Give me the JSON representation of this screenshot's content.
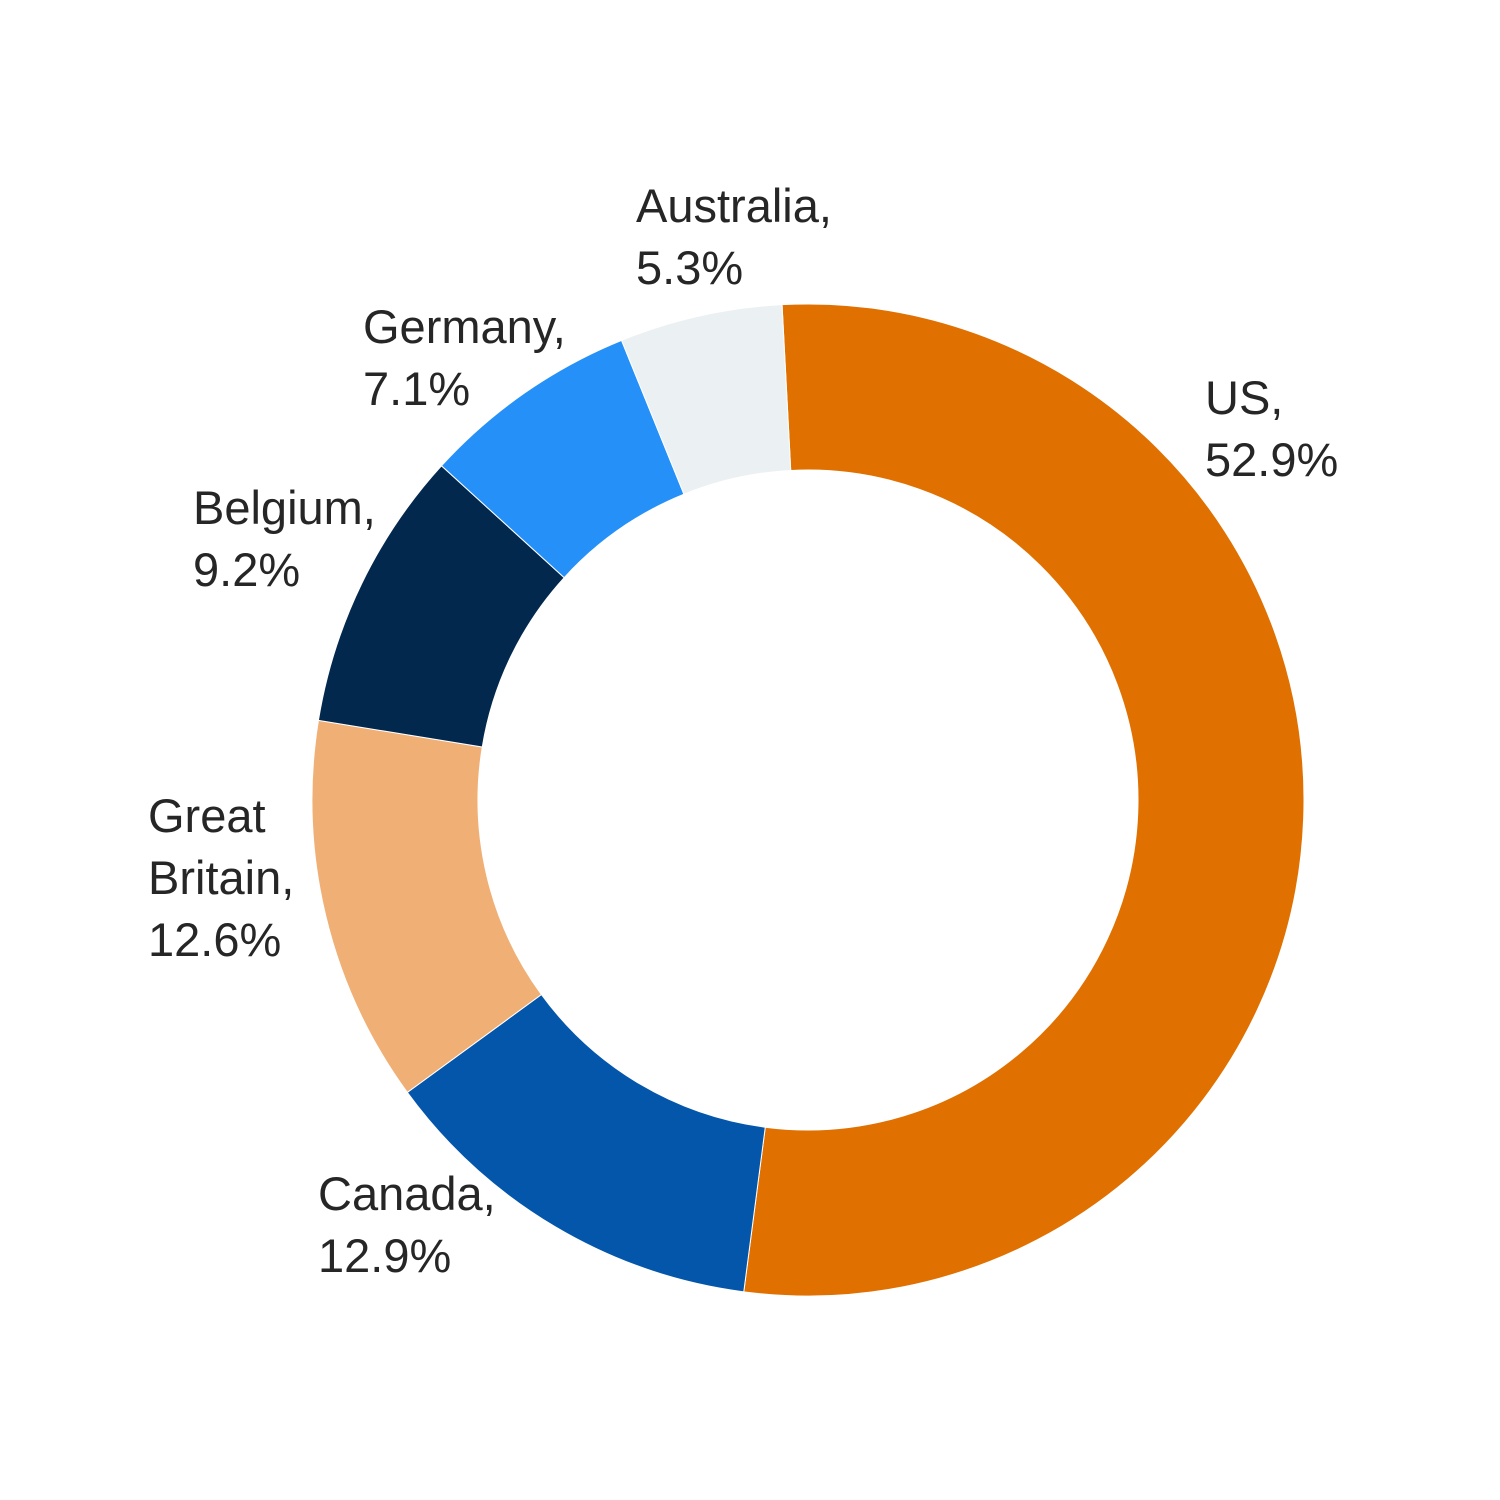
{
  "chart_data": {
    "type": "pie",
    "donut": true,
    "title": "",
    "slices": [
      {
        "name": "US",
        "value": 52.9,
        "label_lines": [
          "US,",
          "52.9%"
        ],
        "color": "#E07000"
      },
      {
        "name": "Canada",
        "value": 12.9,
        "label_lines": [
          "Canada,",
          "12.9%"
        ],
        "color": "#0356AA"
      },
      {
        "name": "Great Britain",
        "value": 12.6,
        "label_lines": [
          "Great",
          "Britain,",
          "12.6%"
        ],
        "color": "#F0AF74"
      },
      {
        "name": "Belgium",
        "value": 9.2,
        "label_lines": [
          "Belgium,",
          "9.2%"
        ],
        "color": "#02284E"
      },
      {
        "name": "Germany",
        "value": 7.1,
        "label_lines": [
          "Germany,",
          "7.1%"
        ],
        "color": "#2490F8"
      },
      {
        "name": "Australia",
        "value": 5.3,
        "label_lines": [
          "Australia,",
          "5.3%"
        ],
        "color": "#EBF0F3"
      }
    ]
  }
}
